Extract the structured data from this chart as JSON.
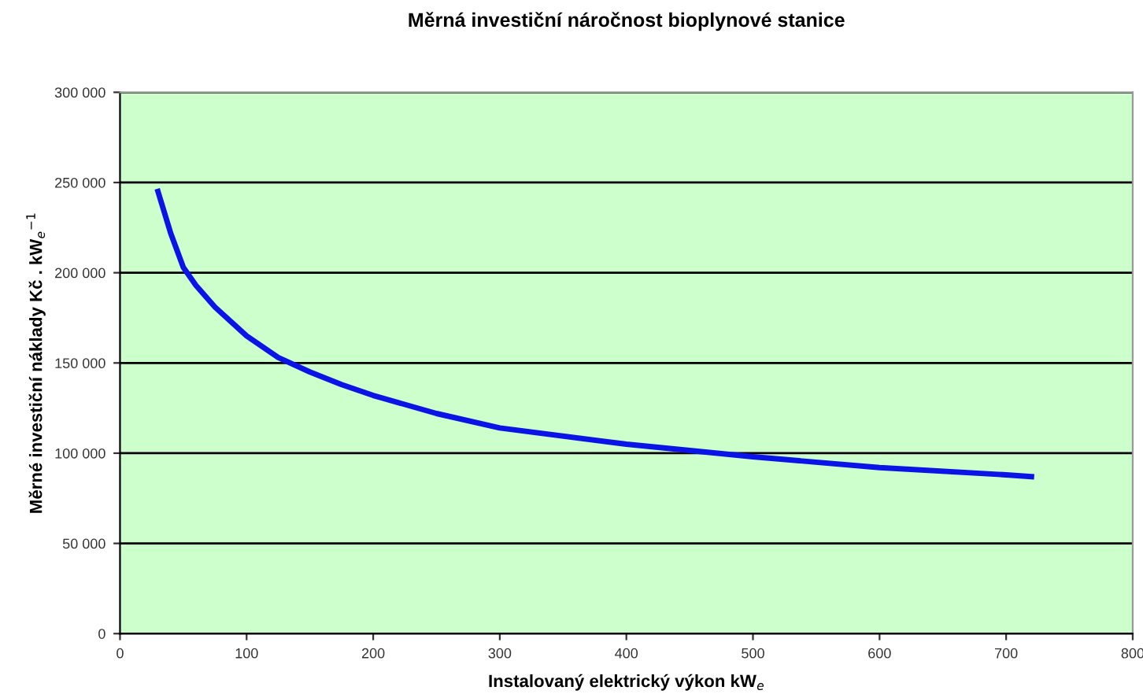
{
  "chart_data": {
    "type": "line",
    "title": "Měrná investiční náročnost bioplynové stanice",
    "xlabel": "Instalovaný elektrický výkon kW$_{e}$",
    "ylabel": "Měrné investiční náklady Kč . kW$_{e}$$^{−1}$",
    "series": [
      {
        "color": "#0a14e6",
        "x": [
          30,
          40,
          50,
          60,
          75,
          100,
          125,
          150,
          175,
          200,
          250,
          300,
          400,
          500,
          600,
          700,
          720
        ],
        "values": [
          245000,
          222000,
          203000,
          193000,
          181000,
          165000,
          153000,
          145000,
          138000,
          132000,
          122000,
          114000,
          105000,
          98000,
          92000,
          88000,
          87000
        ]
      }
    ],
    "xlim": [
      0,
      800
    ],
    "xticks": [
      0,
      100,
      200,
      300,
      400,
      500,
      600,
      700,
      800
    ],
    "ylim": [
      0,
      300000
    ],
    "yticks": [
      0,
      {
        "value": 50000,
        "label": "50 000"
      },
      {
        "value": 100000,
        "label": "100 000"
      },
      {
        "value": 150000,
        "label": "150 000"
      },
      {
        "value": 200000,
        "label": "200 000"
      },
      {
        "value": 250000,
        "label": "250 000"
      },
      {
        "value": 300000,
        "label": "300 000"
      }
    ],
    "grid": "y",
    "legend": false,
    "marker": "none",
    "line_style": "solid"
  }
}
